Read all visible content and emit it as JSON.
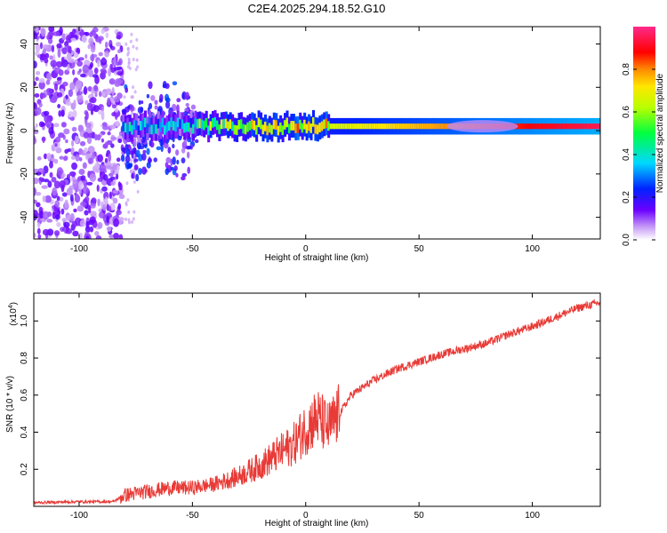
{
  "title": "C2E4.2025.294.18.52.G10",
  "chart_data": [
    {
      "type": "heatmap",
      "xlabel": "Height of straight line (km)",
      "ylabel": "Frequency (Hz)",
      "xlim": [
        -120,
        130
      ],
      "ylim": [
        -50,
        48
      ],
      "xticks": [
        -100,
        -50,
        0,
        50,
        100
      ],
      "yticks": [
        -40,
        -20,
        0,
        20,
        40
      ],
      "colorbar": {
        "label": "Normalized spectral amplitude",
        "range": [
          0,
          1
        ],
        "ticks": [
          0.0,
          0.2,
          0.4,
          0.6,
          0.8
        ],
        "tick_labels": [
          "0.0",
          "0.2",
          "0.4",
          "0.6",
          "0.8"
        ]
      },
      "regions": [
        {
          "name": "noise",
          "x_range": [
            -120,
            -81
          ],
          "freq_range": [
            -50,
            48
          ],
          "amplitude": 0.05
        },
        {
          "name": "onset-spread",
          "x_range": [
            -81,
            -48
          ],
          "freq_range": [
            -25,
            25
          ],
          "amplitude": 0.15
        },
        {
          "name": "central-band",
          "x_range": [
            -81,
            130
          ],
          "freq_center": 2,
          "amplitude_start": 0.2,
          "amplitude_end": 0.95
        },
        {
          "name": "mid-spread",
          "x_range": [
            60,
            95
          ],
          "freq_range": [
            -4,
            8
          ],
          "amplitude": 0.05
        }
      ]
    },
    {
      "type": "line",
      "xlabel": "Height of straight line (km)",
      "ylabel": "SNR (10 * v/v)",
      "y_multiplier": "(x10^4)",
      "y_multiplier_base": "(x10",
      "y_multiplier_exp": "4",
      "y_multiplier_close": ")",
      "xlim": [
        -120,
        130
      ],
      "ylim": [
        0,
        1.15
      ],
      "xticks": [
        -100,
        -50,
        0,
        50,
        100
      ],
      "yticks": [
        0.2,
        0.4,
        0.6,
        0.8,
        1.0
      ],
      "ytick_labels": [
        "0.2",
        "0.4",
        "0.6",
        "0.8",
        "1.0"
      ],
      "series": [
        {
          "name": "SNR",
          "color": "#e83a36",
          "x": [
            -120,
            -100,
            -85,
            -80,
            -70,
            -60,
            -50,
            -40,
            -30,
            -20,
            -10,
            -5,
            0,
            5,
            10,
            15,
            20,
            30,
            40,
            50,
            60,
            70,
            80,
            90,
            100,
            110,
            120,
            130
          ],
          "y": [
            0.02,
            0.025,
            0.025,
            0.06,
            0.08,
            0.1,
            0.1,
            0.12,
            0.16,
            0.22,
            0.3,
            0.34,
            0.42,
            0.48,
            0.42,
            0.5,
            0.6,
            0.68,
            0.74,
            0.78,
            0.82,
            0.85,
            0.88,
            0.93,
            0.97,
            1.02,
            1.07,
            1.1
          ]
        }
      ]
    }
  ]
}
